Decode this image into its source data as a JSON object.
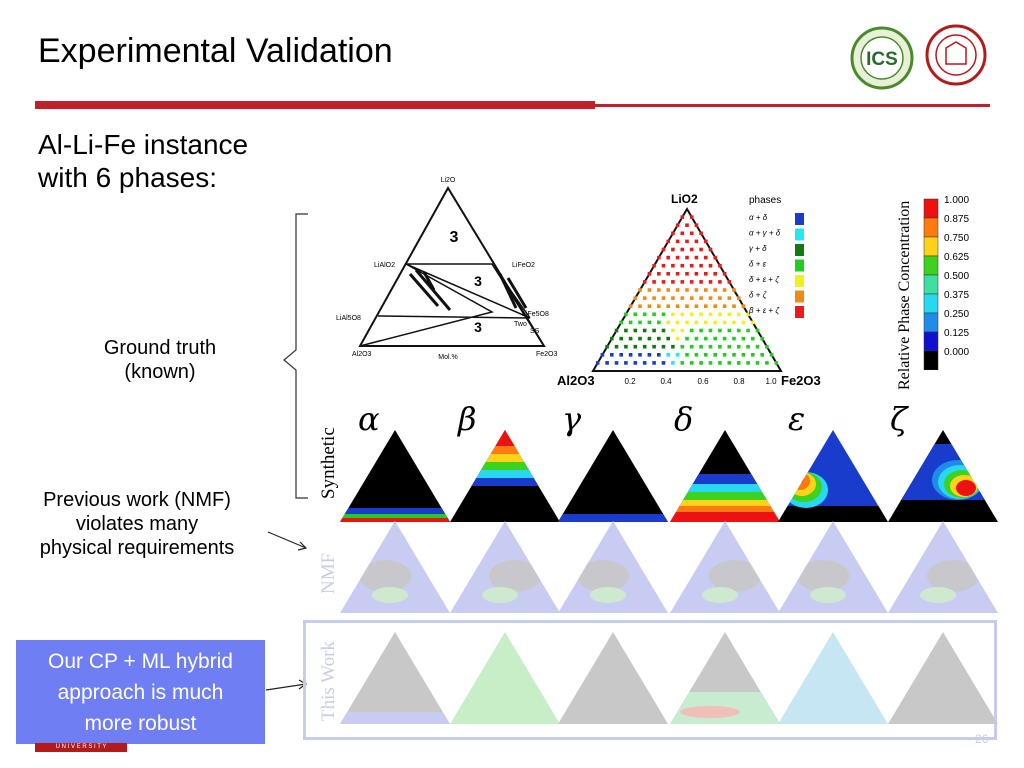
{
  "slide": {
    "title": "Experimental Validation",
    "heading_line1": "Al-Li-Fe instance",
    "heading_line2": "with 6 phases:",
    "ground_truth_line1": "Ground truth",
    "ground_truth_line2": "(known)",
    "prev_line1": "Previous work (NMF)",
    "prev_line2": "violates many",
    "prev_line3": "physical requirements",
    "ours_line1": "Our CP + ML hybrid",
    "ours_line2": "approach is much",
    "ours_line3": "more robust",
    "footer_univ": "U N I V E R S I T Y",
    "page_number": "26"
  },
  "logos": {
    "ics_text": "ICS",
    "ics_ring": "Institute for Computational Sustainability"
  },
  "phase_diagram": {
    "apex": "Li2O",
    "left_labels": [
      "LiAlO2",
      "LiAl5O8",
      "Al2O3"
    ],
    "right_labels": [
      "LiFeO2",
      "LiFe5O8",
      "Two",
      "SS",
      "Fe2O3"
    ],
    "region_labels": [
      "3",
      "3",
      "3"
    ],
    "bottom": "Mol.%"
  },
  "ternary": {
    "top": "LiO2",
    "left": "Al2O3",
    "right": "Fe2O3",
    "ticks": [
      "0.2",
      "0.4",
      "0.6",
      "0.8",
      "1.0"
    ],
    "legend_title": "phases",
    "phases": [
      {
        "label": "α + δ",
        "color": "#1a3ccc"
      },
      {
        "label": "α + γ + δ",
        "color": "#22e8f0"
      },
      {
        "label": "γ + δ",
        "color": "#137a13"
      },
      {
        "label": "δ + ε",
        "color": "#22cc22"
      },
      {
        "label": "δ + ε + ζ",
        "color": "#f0f020"
      },
      {
        "label": "δ + ζ",
        "color": "#f08a10"
      },
      {
        "label": "β + ε + ζ",
        "color": "#e81c1c"
      }
    ]
  },
  "colorbar": {
    "label": "Relative Phase Concentration",
    "ticks": [
      "1.000",
      "0.875",
      "0.750",
      "0.625",
      "0.500",
      "0.375",
      "0.250",
      "0.125",
      "0.000"
    ],
    "colors": [
      "#ee1111",
      "#ff7a10",
      "#ffd21a",
      "#3cd21e",
      "#3de0a0",
      "#28d8f0",
      "#1e8ce8",
      "#1010d0",
      "#000000"
    ]
  },
  "grid": {
    "greek": [
      "α",
      "β",
      "γ",
      "δ",
      "ε",
      "ζ"
    ],
    "row_labels": [
      "Synthetic",
      "NMF",
      "This Work"
    ]
  }
}
